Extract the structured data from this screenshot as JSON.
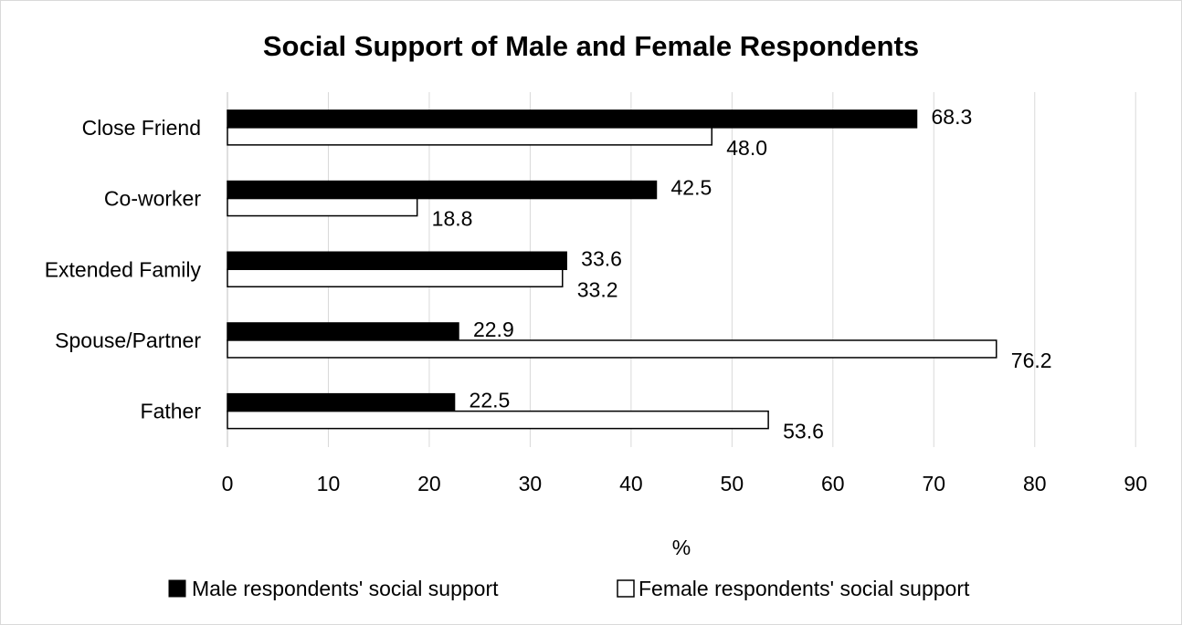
{
  "chart_data": {
    "type": "bar",
    "orientation": "horizontal",
    "title": "Social Support of Male and Female Respondents",
    "xlabel": "%",
    "ylabel": "",
    "xlim": [
      0,
      90
    ],
    "x_ticks": [
      0,
      10,
      20,
      30,
      40,
      50,
      60,
      70,
      80,
      90
    ],
    "categories": [
      "Close Friend",
      "Co-worker",
      "Extended Family",
      "Spouse/Partner",
      "Father"
    ],
    "series": [
      {
        "name": "Male respondents' social support",
        "color": "#000000",
        "values": [
          68.3,
          42.5,
          33.6,
          22.9,
          22.5
        ],
        "labels": [
          "68.3",
          "42.5",
          "33.6",
          "22.9",
          "22.5"
        ]
      },
      {
        "name": "Female respondents' social support",
        "color": "#ffffff",
        "values": [
          48.0,
          18.8,
          33.2,
          76.2,
          53.6
        ],
        "labels": [
          "48.0",
          "18.8",
          "33.2",
          "76.2",
          "53.6"
        ]
      }
    ],
    "grid": "vertical",
    "legend": "bottom"
  }
}
